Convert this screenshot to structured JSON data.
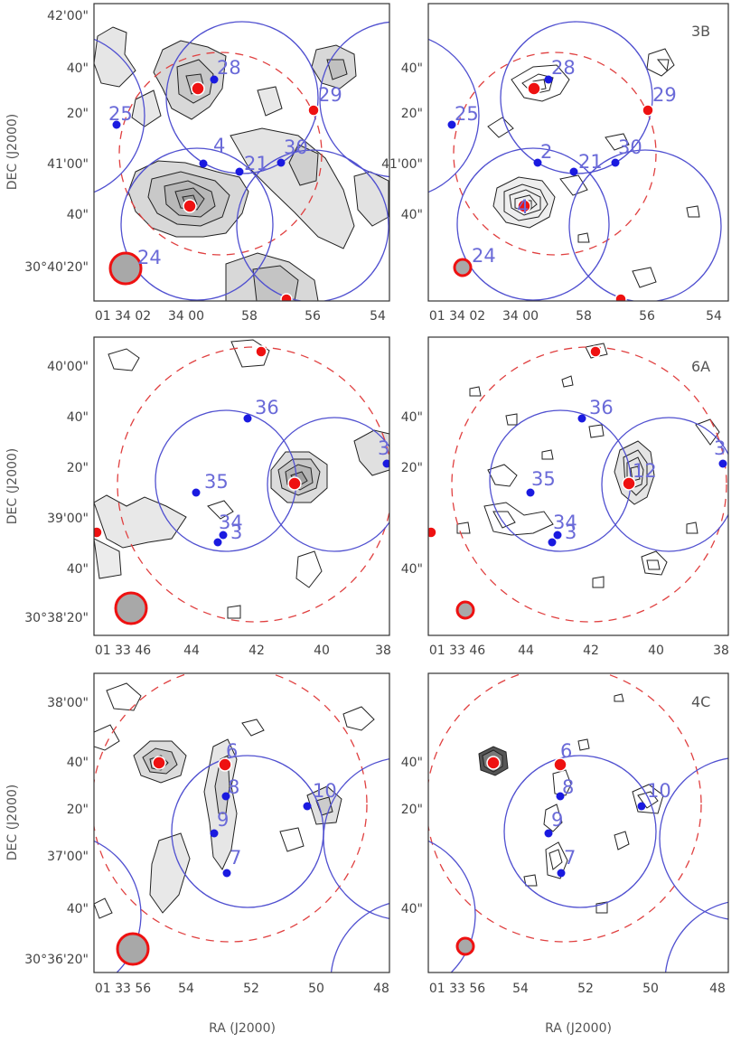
{
  "figure": {
    "ylabel": "DEC (J2000)",
    "xlabel": "RA (J2000)",
    "colors": {
      "frame": "#333333",
      "blue_circle": "#5050d0",
      "red_dashed_circle": "#e04040",
      "blue_point": "#1a1ae0",
      "red_point": "#ee1111",
      "label": "#6a6ad8",
      "contour": "#222222",
      "fill": "#d8d8d8",
      "beam": "#a8a8a8"
    },
    "rows": [
      {
        "y_ticks": [
          "42'00\"",
          "40\"",
          "20\"",
          "41'00\"",
          "40\"",
          "30°40'20\""
        ],
        "x_ticks": [
          "01 34 02",
          "34 00",
          "58",
          "56",
          "54"
        ]
      },
      {
        "y_ticks": [
          "40'00\"",
          "40\"",
          "20\"",
          "39'00\"",
          "40\"",
          "30°38'20\""
        ],
        "x_ticks": [
          "01 33 46",
          "44",
          "42",
          "40",
          "38"
        ]
      },
      {
        "y_ticks": [
          "38'00\"",
          "40\"",
          "20\"",
          "37'00\"",
          "40\"",
          "30°36'20\""
        ],
        "x_ticks": [
          "01 33 56",
          "54",
          "52",
          "50",
          "48"
        ]
      }
    ],
    "panels": [
      {
        "id": "r1-left",
        "tag": "",
        "labels": [
          "25",
          "28",
          "29",
          "30",
          "21",
          "4",
          "24"
        ]
      },
      {
        "id": "r1-right",
        "tag": "3B",
        "labels": [
          "25",
          "28",
          "29",
          "30",
          "2",
          "21",
          "4",
          "24"
        ]
      },
      {
        "id": "r2-left",
        "tag": "",
        "labels": [
          "36",
          "35",
          "34",
          "3",
          "31"
        ]
      },
      {
        "id": "r2-right",
        "tag": "6A",
        "labels": [
          "36",
          "35",
          "34",
          "3",
          "31",
          "12"
        ]
      },
      {
        "id": "r3-left",
        "tag": "",
        "labels": [
          "6",
          "8",
          "9",
          "7",
          "10"
        ]
      },
      {
        "id": "r3-right",
        "tag": "4C",
        "labels": [
          "6",
          "8",
          "9",
          "7",
          "10"
        ]
      }
    ]
  }
}
